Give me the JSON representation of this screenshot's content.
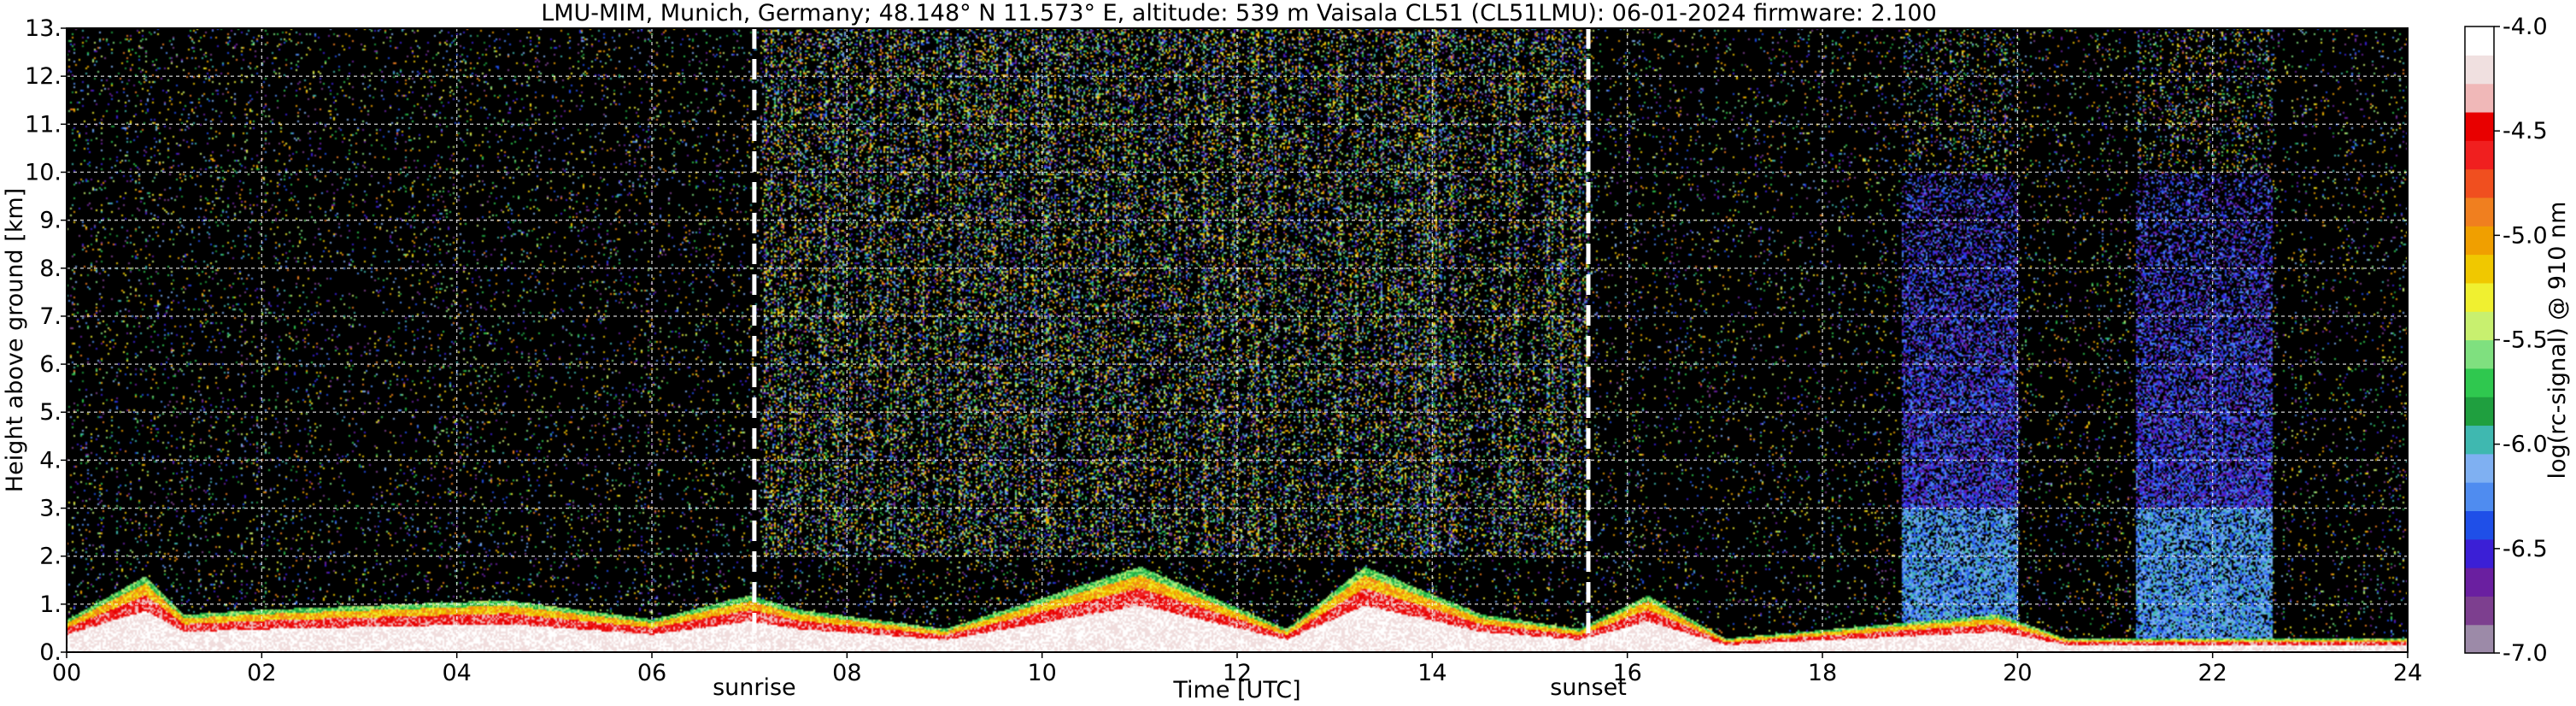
{
  "chart_data": {
    "type": "heatmap",
    "title": "LMU-MIM, Munich, Germany; 48.148° N 11.573° E, altitude: 539 m    Vaisala CL51 (CL51LMU): 06-01-2024    firmware: 2.100",
    "xlabel": "Time [UTC]",
    "ylabel": "Height above ground [km]",
    "xlim": [
      0,
      24
    ],
    "ylim": [
      0,
      13
    ],
    "x_ticks": [
      0,
      2,
      4,
      6,
      8,
      10,
      12,
      14,
      16,
      18,
      20,
      22,
      24
    ],
    "x_tick_labels": [
      "00",
      "02",
      "04",
      "06",
      "08",
      "10",
      "12",
      "14",
      "16",
      "18",
      "20",
      "22",
      "24"
    ],
    "y_ticks": [
      0,
      1,
      2,
      3,
      4,
      5,
      6,
      7,
      8,
      9,
      10,
      11,
      12,
      13
    ],
    "y_tick_labels": [
      "0.",
      "1.",
      "2.",
      "3.",
      "4.",
      "5.",
      "6.",
      "7.",
      "8.",
      "9.",
      "10.",
      "11.",
      "12.",
      "13."
    ],
    "grid": true,
    "background_color": "#000000",
    "colorbar": {
      "label": "log(rc-signal) @ 910 nm",
      "range": [
        -7.0,
        -4.0
      ],
      "ticks": [
        -7.0,
        -6.5,
        -6.0,
        -5.5,
        -5.0,
        -4.5,
        -4.0
      ],
      "tick_labels": [
        "-7.0",
        "-6.5",
        "-6.0",
        "-5.5",
        "-5.0",
        "-4.5",
        "-4.0"
      ],
      "colors": [
        "#9c8aa8",
        "#7d3f8f",
        "#6a1fa0",
        "#3b1fd6",
        "#1f4fe8",
        "#4f8cf0",
        "#7fb0f2",
        "#3fb8b0",
        "#1f9f3f",
        "#2fc84f",
        "#7fe07f",
        "#c8f06f",
        "#f0f030",
        "#f0c800",
        "#f09f00",
        "#f07f1f",
        "#f04f1f",
        "#f01f1f",
        "#e80000",
        "#f0b8b8",
        "#f0e0e0",
        "#ffffff"
      ]
    },
    "markers": [
      {
        "label": "sunrise",
        "time": 7.05
      },
      {
        "label": "sunset",
        "time": 15.6
      }
    ],
    "boundary_layer_top_km": [
      {
        "t": 0.0,
        "h": 0.7
      },
      {
        "t": 0.8,
        "h": 1.6
      },
      {
        "t": 1.2,
        "h": 0.8
      },
      {
        "t": 2.0,
        "h": 0.9
      },
      {
        "t": 4.5,
        "h": 1.1
      },
      {
        "t": 6.0,
        "h": 0.7
      },
      {
        "t": 7.0,
        "h": 1.2
      },
      {
        "t": 7.5,
        "h": 0.9
      },
      {
        "t": 9.0,
        "h": 0.5
      },
      {
        "t": 11.0,
        "h": 1.8
      },
      {
        "t": 12.5,
        "h": 0.5
      },
      {
        "t": 13.3,
        "h": 1.8
      },
      {
        "t": 14.5,
        "h": 0.8
      },
      {
        "t": 15.5,
        "h": 0.5
      },
      {
        "t": 16.2,
        "h": 1.2
      },
      {
        "t": 17.0,
        "h": 0.3
      },
      {
        "t": 19.8,
        "h": 0.8
      },
      {
        "t": 20.5,
        "h": 0.3
      },
      {
        "t": 24.0,
        "h": 0.3
      }
    ],
    "high_noise_regions": [
      {
        "t_start": 7.1,
        "t_end": 15.6,
        "level": "high"
      },
      {
        "t_start": 18.8,
        "t_end": 20.0,
        "level": "aerosol"
      },
      {
        "t_start": 21.2,
        "t_end": 22.6,
        "level": "aerosol"
      }
    ]
  }
}
